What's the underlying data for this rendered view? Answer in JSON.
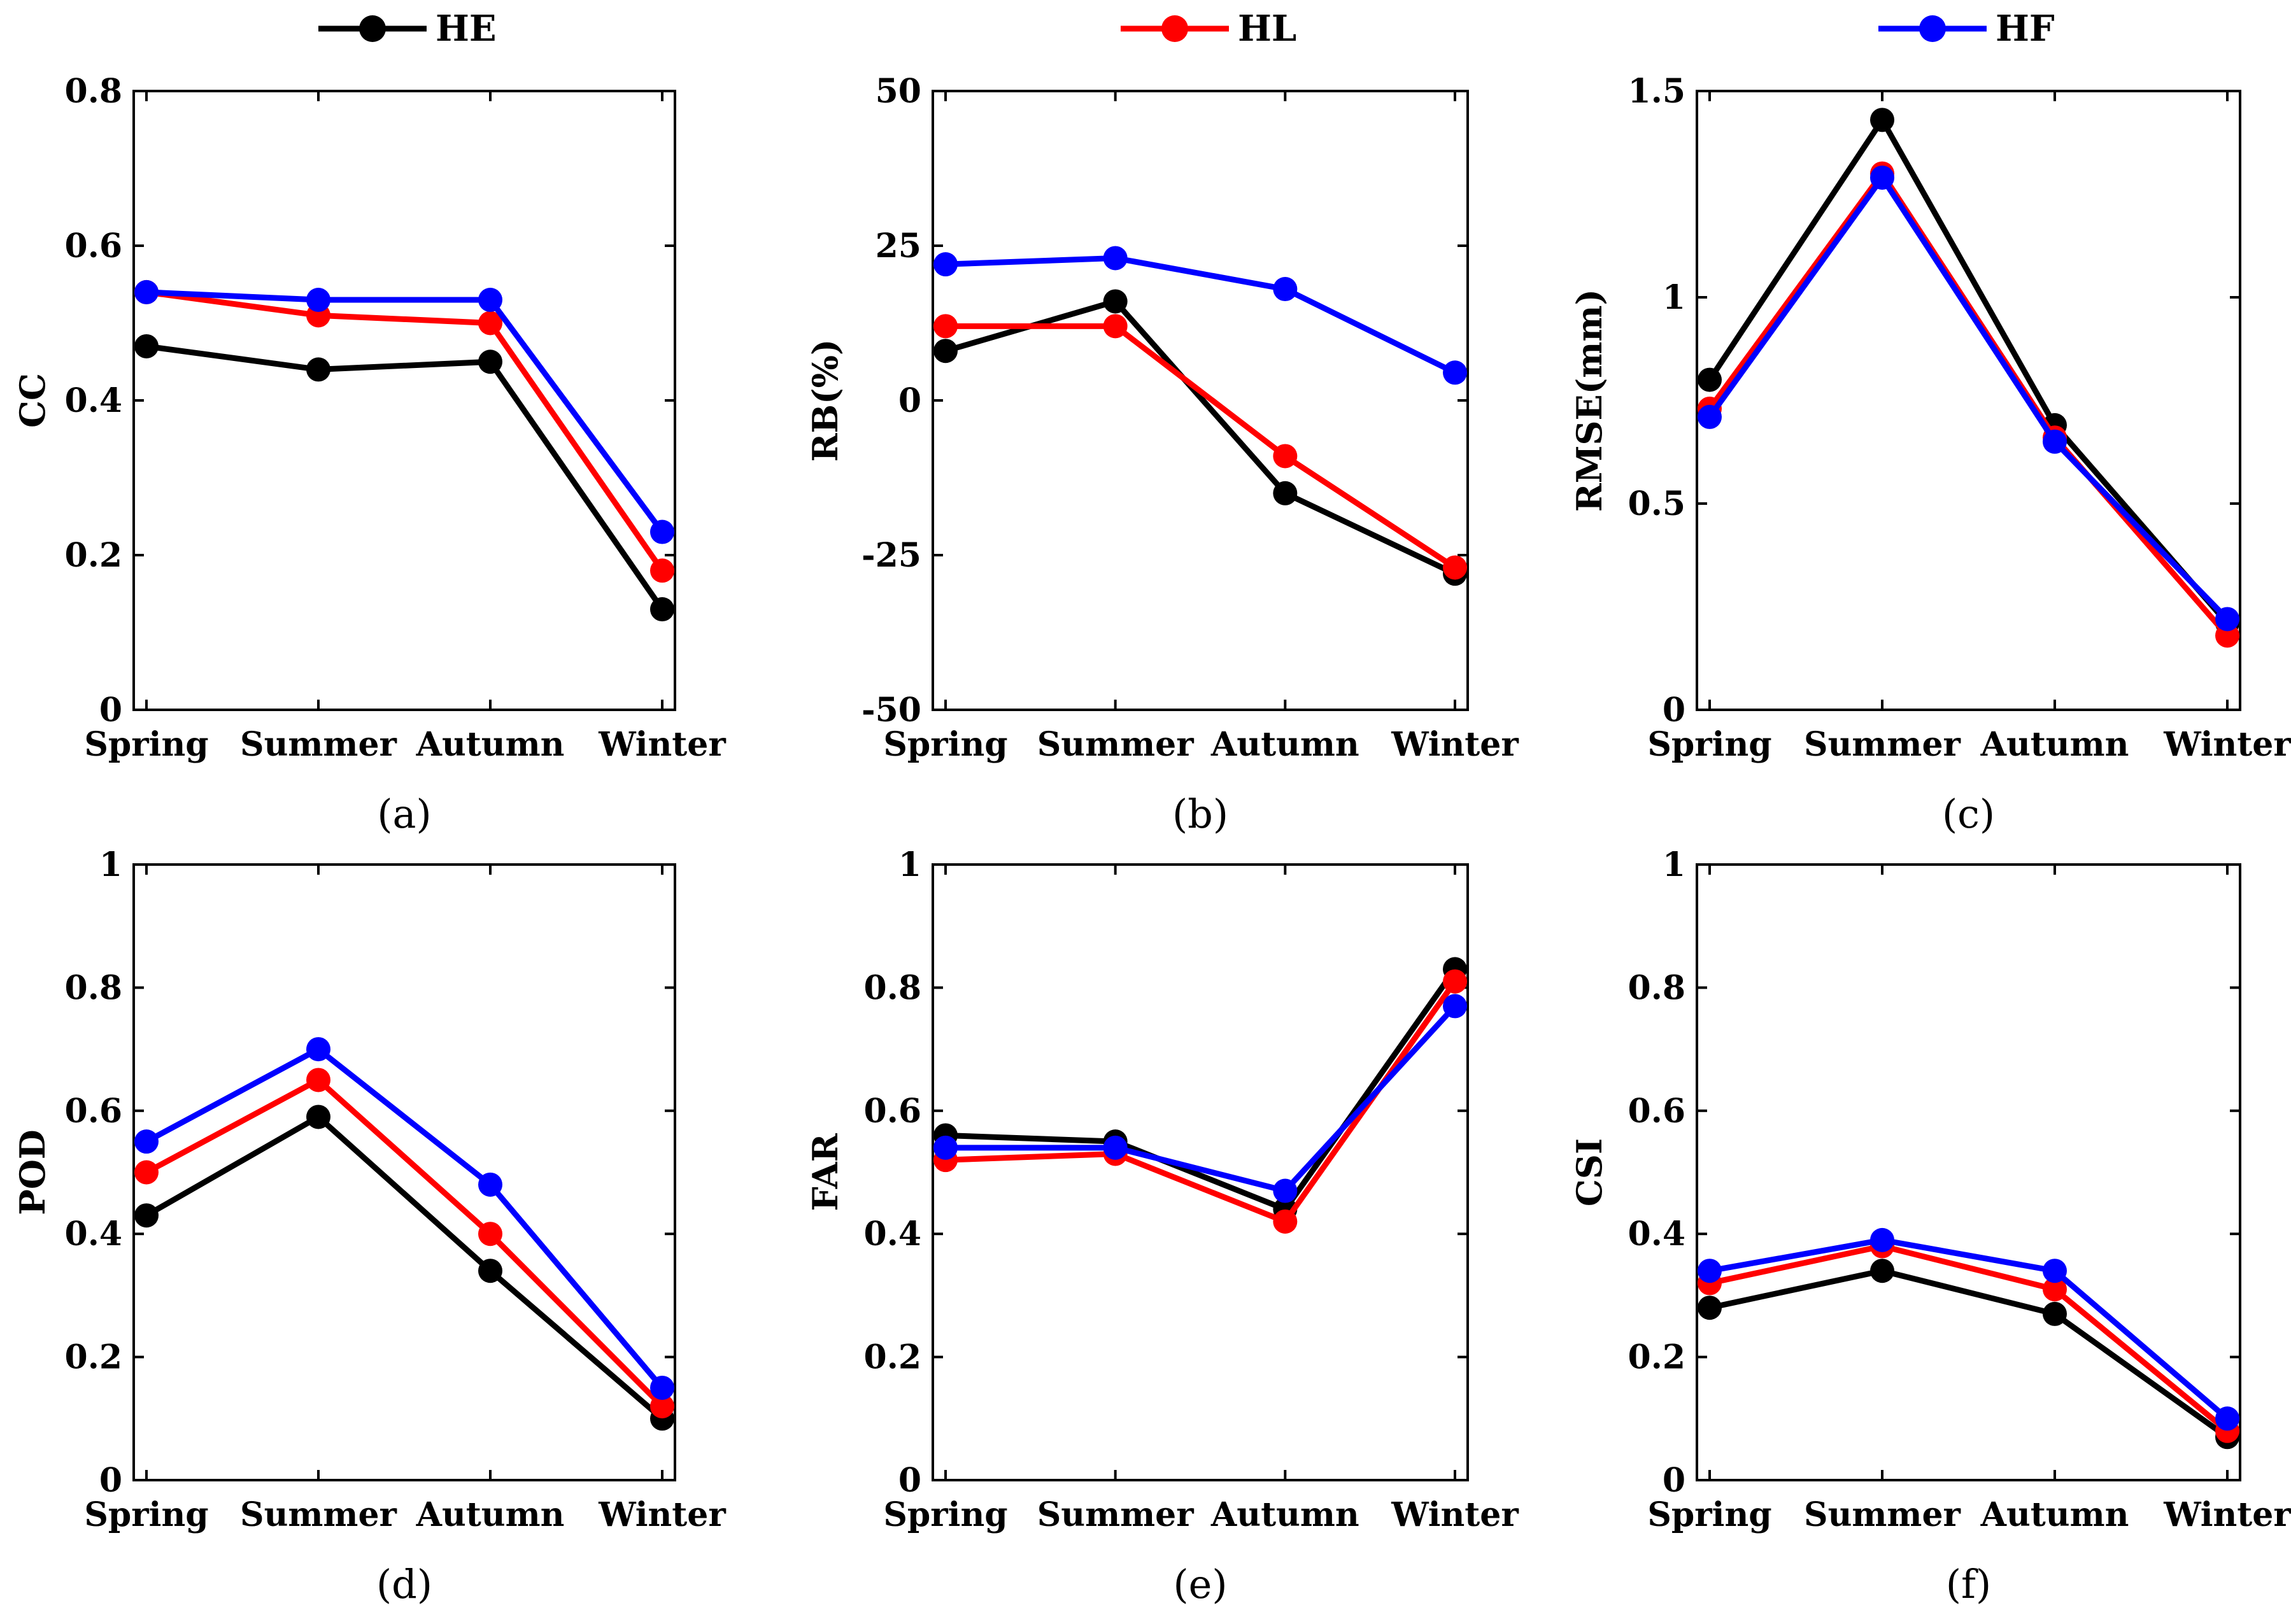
{
  "legend": [
    {
      "name": "HE",
      "color": "#000000"
    },
    {
      "name": "HL",
      "color": "#ff0000"
    },
    {
      "name": "HF",
      "color": "#0000ff"
    }
  ],
  "chart_data": [
    {
      "type": "line",
      "panel_label": "(a)",
      "ylabel": "CC",
      "categories": [
        "Spring",
        "Summer",
        "Autumn",
        "Winter"
      ],
      "ylim": [
        0,
        0.8
      ],
      "yticks": [
        "0",
        "0.2",
        "0.4",
        "0.6",
        "0.8"
      ],
      "series": [
        {
          "name": "HE",
          "values": [
            0.47,
            0.44,
            0.45,
            0.13
          ]
        },
        {
          "name": "HL",
          "values": [
            0.54,
            0.51,
            0.5,
            0.18
          ]
        },
        {
          "name": "HF",
          "values": [
            0.54,
            0.53,
            0.53,
            0.23
          ]
        }
      ]
    },
    {
      "type": "line",
      "panel_label": "(b)",
      "ylabel": "RB(%)",
      "categories": [
        "Spring",
        "Summer",
        "Autumn",
        "Winter"
      ],
      "ylim": [
        -50,
        50
      ],
      "yticks": [
        "-50",
        "-25",
        "0",
        "25",
        "50"
      ],
      "series": [
        {
          "name": "HE",
          "values": [
            8,
            16,
            -15,
            -28
          ]
        },
        {
          "name": "HL",
          "values": [
            12,
            12,
            -9,
            -27
          ]
        },
        {
          "name": "HF",
          "values": [
            22,
            23,
            18,
            4.5
          ]
        }
      ]
    },
    {
      "type": "line",
      "panel_label": "(c)",
      "ylabel": "RMSE(mm)",
      "categories": [
        "Spring",
        "Summer",
        "Autumn",
        "Winter"
      ],
      "ylim": [
        0,
        1.5
      ],
      "yticks": [
        "0",
        "0.5",
        "1",
        "1.5"
      ],
      "series": [
        {
          "name": "HE",
          "values": [
            0.8,
            1.43,
            0.69,
            0.21
          ]
        },
        {
          "name": "HL",
          "values": [
            0.73,
            1.3,
            0.66,
            0.18
          ]
        },
        {
          "name": "HF",
          "values": [
            0.71,
            1.29,
            0.65,
            0.22
          ]
        }
      ]
    },
    {
      "type": "line",
      "panel_label": "(d)",
      "ylabel": "POD",
      "categories": [
        "Spring",
        "Summer",
        "Autumn",
        "Winter"
      ],
      "ylim": [
        0,
        1
      ],
      "yticks": [
        "0",
        "0.2",
        "0.4",
        "0.6",
        "0.8",
        "1"
      ],
      "series": [
        {
          "name": "HE",
          "values": [
            0.43,
            0.59,
            0.34,
            0.1
          ]
        },
        {
          "name": "HL",
          "values": [
            0.5,
            0.65,
            0.4,
            0.12
          ]
        },
        {
          "name": "HF",
          "values": [
            0.55,
            0.7,
            0.48,
            0.15
          ]
        }
      ]
    },
    {
      "type": "line",
      "panel_label": "(e)",
      "ylabel": "FAR",
      "categories": [
        "Spring",
        "Summer",
        "Autumn",
        "Winter"
      ],
      "ylim": [
        0,
        1
      ],
      "yticks": [
        "0",
        "0.2",
        "0.4",
        "0.6",
        "0.8",
        "1"
      ],
      "series": [
        {
          "name": "HE",
          "values": [
            0.56,
            0.55,
            0.44,
            0.83
          ]
        },
        {
          "name": "HL",
          "values": [
            0.52,
            0.53,
            0.42,
            0.81
          ]
        },
        {
          "name": "HF",
          "values": [
            0.54,
            0.54,
            0.47,
            0.77
          ]
        }
      ]
    },
    {
      "type": "line",
      "panel_label": "(f)",
      "ylabel": "CSI",
      "categories": [
        "Spring",
        "Summer",
        "Autumn",
        "Winter"
      ],
      "ylim": [
        0,
        1
      ],
      "yticks": [
        "0",
        "0.2",
        "0.4",
        "0.6",
        "0.8",
        "1"
      ],
      "series": [
        {
          "name": "HE",
          "values": [
            0.28,
            0.34,
            0.27,
            0.07
          ]
        },
        {
          "name": "HL",
          "values": [
            0.32,
            0.38,
            0.31,
            0.08
          ]
        },
        {
          "name": "HF",
          "values": [
            0.34,
            0.39,
            0.34,
            0.1
          ]
        }
      ]
    }
  ]
}
